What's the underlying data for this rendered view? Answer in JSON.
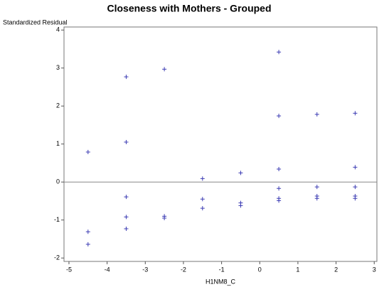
{
  "chart_data": {
    "type": "scatter",
    "title": "Closeness with Mothers - Grouped",
    "y_label": "Standardized Residual",
    "x_label": "H1NM8_C",
    "series": [
      {
        "color": "#3b3bb3",
        "x": [
          -4.5,
          -4.5,
          -4.5,
          -3.5,
          -3.5,
          -3.5,
          -3.5,
          -3.5,
          -2.5,
          -2.5,
          -2.5,
          -1.5,
          -1.5,
          -1.5,
          -0.5,
          -0.5,
          -0.5,
          0.5,
          0.5,
          0.5,
          0.5,
          0.5,
          0.5,
          1.5,
          1.5,
          1.5,
          1.5,
          2.5,
          2.5,
          2.5,
          2.5,
          2.5
        ],
        "values": [
          0.79,
          -1.31,
          -1.64,
          2.77,
          1.05,
          -0.39,
          -0.92,
          -1.23,
          2.97,
          -0.9,
          -0.95,
          0.09,
          -0.45,
          -0.69,
          0.24,
          -0.55,
          -0.62,
          3.42,
          1.74,
          0.34,
          -0.17,
          -0.43,
          -0.49,
          1.78,
          -0.13,
          -0.37,
          -0.43,
          1.81,
          0.39,
          -0.13,
          -0.37,
          -0.43
        ]
      }
    ],
    "xlim": [
      -5.13,
      3.07
    ],
    "ylim": [
      -2.09,
      4.08
    ],
    "xticks": [
      -5,
      -4,
      -3,
      -2,
      -1,
      0,
      1,
      2,
      3
    ],
    "yticks": [
      -2,
      -1,
      0,
      1,
      2,
      3,
      4
    ],
    "reference_line": 0
  }
}
